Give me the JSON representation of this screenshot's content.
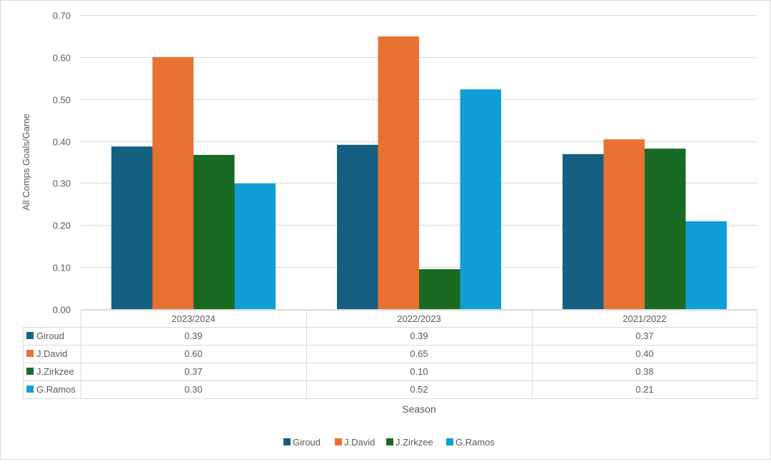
{
  "chart_data": {
    "type": "bar",
    "title": "",
    "xlabel": "Season",
    "ylabel": "All Comps Goals/Game",
    "ylim": [
      0,
      0.7
    ],
    "yticks": [
      "0.00",
      "0.10",
      "0.20",
      "0.30",
      "0.40",
      "0.50",
      "0.60",
      "0.70"
    ],
    "grid": true,
    "legend_position": "bottom",
    "categories": [
      "2023/2024",
      "2022/2023",
      "2021/2022"
    ],
    "series": [
      {
        "name": "Giroud",
        "color": "#156082",
        "values": [
          0.387,
          0.391,
          0.369
        ],
        "table": [
          "0.39",
          "0.39",
          "0.37"
        ]
      },
      {
        "name": "J.David",
        "color": "#E97132",
        "values": [
          0.6,
          0.649,
          0.404
        ],
        "table": [
          "0.60",
          "0.65",
          "0.40"
        ]
      },
      {
        "name": "J.Zirkzee",
        "color": "#196B24",
        "values": [
          0.367,
          0.095,
          0.382
        ],
        "table": [
          "0.37",
          "0.10",
          "0.38"
        ]
      },
      {
        "name": "G.Ramos",
        "color": "#0F9ED5",
        "values": [
          0.299,
          0.523,
          0.209
        ],
        "table": [
          "0.30",
          "0.52",
          "0.21"
        ]
      }
    ]
  }
}
